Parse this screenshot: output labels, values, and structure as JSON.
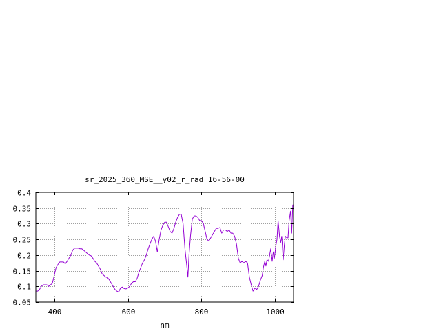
{
  "chart_data": {
    "type": "line",
    "title": "sr_2025_360_MSE__y02_r_rad 16-56-00",
    "xlabel": "nm",
    "ylabel": "",
    "xlim": [
      350,
      1050
    ],
    "ylim": [
      0.05,
      0.4
    ],
    "x_ticks": [
      400,
      600,
      800,
      1000
    ],
    "x_tick_labels": [
      "400",
      "600",
      "800",
      "1000"
    ],
    "y_ticks": [
      0.05,
      0.1,
      0.15,
      0.2,
      0.25,
      0.3,
      0.35,
      0.4
    ],
    "y_tick_labels": [
      "0.05",
      "0.1",
      "0.15",
      "0.2",
      "0.25",
      "0.3",
      "0.35",
      "0.4"
    ],
    "grid": true,
    "grid_style": "dotted",
    "legend": "none",
    "series": [
      {
        "color": "#9400d3",
        "x": [
          350,
          355,
          360,
          365,
          370,
          375,
          380,
          385,
          390,
          395,
          400,
          405,
          410,
          415,
          420,
          425,
          430,
          435,
          440,
          445,
          450,
          455,
          460,
          465,
          470,
          475,
          480,
          485,
          490,
          495,
          500,
          505,
          510,
          515,
          520,
          525,
          530,
          535,
          540,
          545,
          550,
          555,
          560,
          565,
          570,
          575,
          580,
          585,
          590,
          595,
          600,
          605,
          610,
          615,
          620,
          625,
          630,
          635,
          640,
          645,
          650,
          655,
          660,
          665,
          670,
          675,
          680,
          685,
          690,
          695,
          700,
          705,
          710,
          715,
          720,
          725,
          730,
          735,
          740,
          745,
          750,
          755,
          760,
          763,
          766,
          770,
          775,
          780,
          785,
          790,
          795,
          800,
          805,
          810,
          815,
          820,
          825,
          830,
          835,
          840,
          845,
          850,
          855,
          860,
          865,
          870,
          875,
          880,
          885,
          890,
          895,
          900,
          905,
          910,
          915,
          920,
          925,
          930,
          935,
          940,
          945,
          950,
          955,
          960,
          965,
          968,
          972,
          975,
          978,
          982,
          985,
          988,
          992,
          995,
          998,
          1002,
          1005,
          1008,
          1012,
          1015,
          1018,
          1022,
          1025,
          1028,
          1032,
          1035,
          1038,
          1042,
          1045,
          1048,
          1050
        ],
        "y": [
          0.085,
          0.085,
          0.09,
          0.1,
          0.105,
          0.105,
          0.105,
          0.1,
          0.105,
          0.11,
          0.135,
          0.16,
          0.17,
          0.178,
          0.178,
          0.178,
          0.172,
          0.18,
          0.19,
          0.2,
          0.215,
          0.222,
          0.222,
          0.222,
          0.22,
          0.22,
          0.215,
          0.21,
          0.205,
          0.2,
          0.198,
          0.19,
          0.18,
          0.175,
          0.165,
          0.155,
          0.14,
          0.135,
          0.13,
          0.128,
          0.12,
          0.11,
          0.1,
          0.09,
          0.085,
          0.082,
          0.095,
          0.098,
          0.093,
          0.092,
          0.095,
          0.1,
          0.11,
          0.115,
          0.115,
          0.125,
          0.145,
          0.16,
          0.175,
          0.185,
          0.2,
          0.22,
          0.235,
          0.25,
          0.26,
          0.245,
          0.21,
          0.25,
          0.28,
          0.295,
          0.305,
          0.305,
          0.29,
          0.275,
          0.27,
          0.285,
          0.305,
          0.32,
          0.33,
          0.33,
          0.3,
          0.22,
          0.165,
          0.13,
          0.2,
          0.26,
          0.315,
          0.325,
          0.325,
          0.32,
          0.31,
          0.31,
          0.3,
          0.275,
          0.25,
          0.245,
          0.255,
          0.265,
          0.275,
          0.285,
          0.285,
          0.288,
          0.27,
          0.28,
          0.28,
          0.275,
          0.28,
          0.27,
          0.27,
          0.26,
          0.235,
          0.19,
          0.175,
          0.18,
          0.175,
          0.18,
          0.175,
          0.13,
          0.105,
          0.085,
          0.095,
          0.09,
          0.1,
          0.12,
          0.135,
          0.16,
          0.18,
          0.165,
          0.185,
          0.18,
          0.2,
          0.22,
          0.18,
          0.21,
          0.19,
          0.23,
          0.25,
          0.31,
          0.26,
          0.24,
          0.26,
          0.185,
          0.23,
          0.26,
          0.255,
          0.255,
          0.31,
          0.34,
          0.27,
          0.36,
          0.36
        ]
      }
    ]
  }
}
